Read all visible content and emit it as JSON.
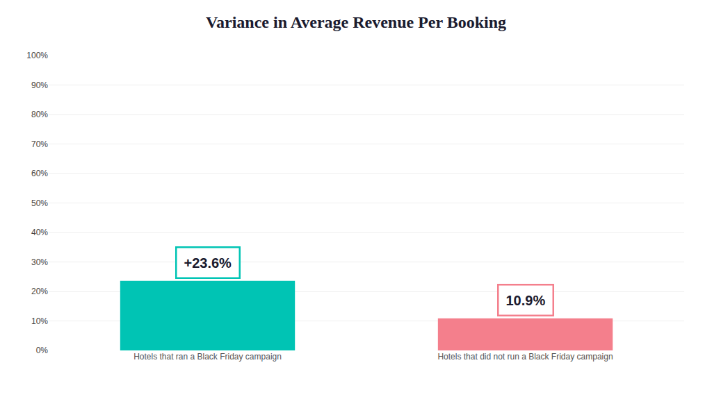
{
  "chart_data": {
    "type": "bar",
    "title": "Variance in Average Revenue Per Booking",
    "categories": [
      "Hotels that ran a Black Friday campaign",
      "Hotels that did not run a Black Friday campaign"
    ],
    "values": [
      23.6,
      10.9
    ],
    "value_labels": [
      "+23.6%",
      "10.9%"
    ],
    "data_labels": true,
    "colors": [
      "#00C4B4",
      "#F47F8C"
    ],
    "ylim": [
      0,
      100
    ],
    "yticks": [
      {
        "value": 0,
        "label": "0%"
      },
      {
        "value": 10,
        "label": "10%"
      },
      {
        "value": 20,
        "label": "20%"
      },
      {
        "value": 30,
        "label": "30%"
      },
      {
        "value": 40,
        "label": "40%"
      },
      {
        "value": 50,
        "label": "50%"
      },
      {
        "value": 60,
        "label": "60%"
      },
      {
        "value": 70,
        "label": "70%"
      },
      {
        "value": 80,
        "label": "80%"
      },
      {
        "value": 90,
        "label": "90%"
      },
      {
        "value": 100,
        "label": "100%"
      }
    ],
    "grid": true
  }
}
